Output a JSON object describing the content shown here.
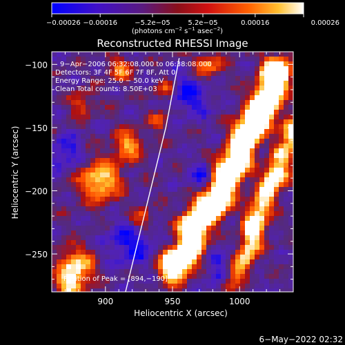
{
  "chart_data": {
    "type": "heatmap",
    "title": "Reconstructed RHESSI Image",
    "xlabel": "Heliocentric X (arcsec)",
    "ylabel": "Heliocentric Y (arcsec)",
    "xlim": [
      860,
      1040
    ],
    "ylim": [
      -280,
      -90
    ],
    "x_ticks": [
      900,
      950,
      1000
    ],
    "y_ticks": [
      -100,
      -150,
      -200,
      -250
    ],
    "x_tick_labels": [
      "900",
      "950",
      "1000"
    ],
    "y_tick_labels": [
      "−100",
      "−150",
      "−200",
      "−250"
    ],
    "colorbar": {
      "range": [
        -0.00026,
        0.00026
      ],
      "ticks": [
        -0.00026,
        -0.00016,
        -5.2e-05,
        5.2e-05,
        0.00016,
        0.00026
      ],
      "tick_labels": [
        "−0.00026",
        "−0.00016",
        "−5.2e−05",
        "5.2e−05",
        "0.00016",
        "0.00026"
      ],
      "units_parts": {
        "a": "(photons cm",
        "b": "−2",
        "c": " s",
        "d": "−1",
        "e": " asec",
        "f": "−2",
        "g": ")"
      }
    },
    "annotations": [
      "9−Apr−2006 06:32:08.000 to 06:38:08.000",
      "Detectors: 3F 4F 5F 6F 7F 8F, Att 0",
      "Energy Range: 25.0 − 50.0 keV",
      "Clean     Total counts: 8.50E+03"
    ],
    "peak_label": "Position of Peak = [894,−190]",
    "peak": [
      894,
      -190
    ],
    "limb_curve": {
      "x": [
        915,
        930,
        945,
        955
      ],
      "y": [
        -280,
        -215,
        -150,
        -95
      ]
    },
    "colormap": [
      "#0000ff",
      "#5020c0",
      "#552a7a",
      "#b01010",
      "#ff5000",
      "#ffc030",
      "#ffffff"
    ],
    "footer_timestamp": "6−May−2022 02:32"
  }
}
